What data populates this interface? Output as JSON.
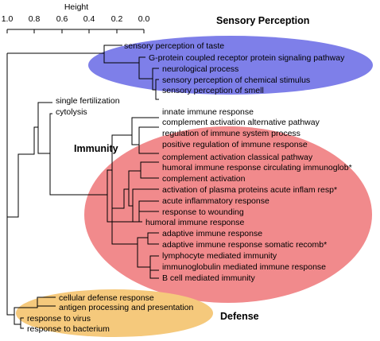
{
  "axis": {
    "title": "Height",
    "ticks": [
      "1.0",
      "0.8",
      "0.6",
      "0.4",
      "0.2",
      "0.0"
    ]
  },
  "clusters": {
    "sensory": {
      "title": "Sensory Perception",
      "color": "#7e7fe9"
    },
    "immunity": {
      "title": "Immunity",
      "color": "#f18a8c"
    },
    "defense": {
      "title": "Defense",
      "color": "#f5c97c"
    }
  },
  "leaves": [
    "sensory perception of taste",
    "G-protein coupled receptor protein signaling pathway",
    "neurological process",
    "sensory perception of chemical stimulus",
    "sensory perception of smell",
    "single fertilization",
    "cytolysis",
    "innate immune response",
    "complement activation  alternative pathway",
    "regulation of immune system process",
    "positive regulation of immune response",
    "complement activation  classical pathway",
    "humoral immune response circulating immunoglob*",
    "complement activation",
    "activation of plasma proteins acute inflam resp*",
    "acute inflammatory response",
    "response to wounding",
    "humoral immune response",
    "adaptive immune response",
    "adaptive immune response somatic recomb*",
    "lymphocyte mediated immunity",
    "immunoglobulin mediated immune response",
    "B cell mediated immunity",
    "cellular defense response",
    "antigen processing and presentation",
    "response to virus",
    "response to bacterium"
  ]
}
